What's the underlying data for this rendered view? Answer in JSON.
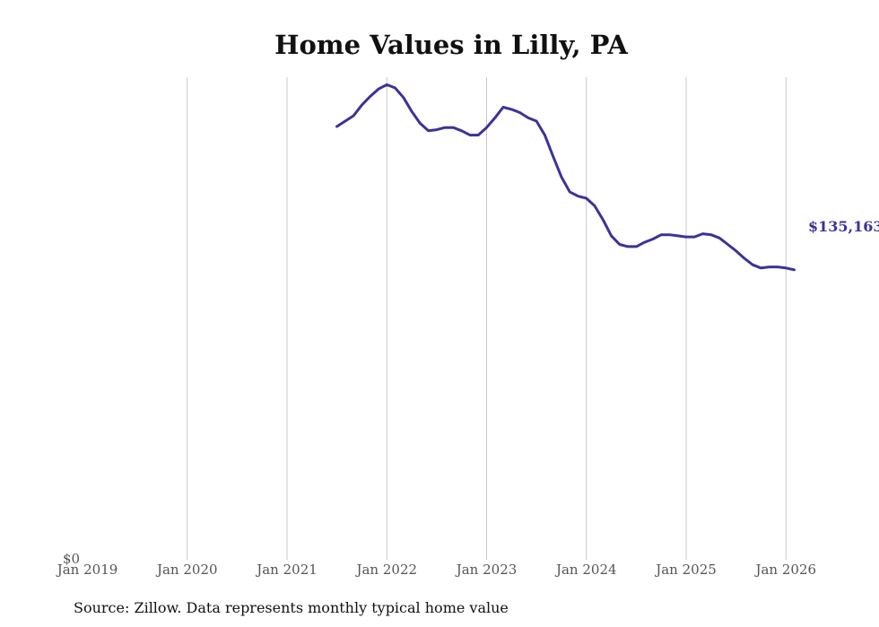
{
  "chart_data": {
    "type": "line",
    "title": "Home Values in Lilly, PA",
    "xlabel": "",
    "ylabel": "",
    "x_ticks": [
      "Jan 2019",
      "Jan 2020",
      "Jan 2021",
      "Jan 2022",
      "Jan 2023",
      "Jan 2024",
      "Jan 2025",
      "Jan 2026"
    ],
    "y_tick_label": "$0",
    "ylim": [
      0,
      225000
    ],
    "grid": true,
    "series": [
      {
        "name": "Typical home value",
        "color": "#3b3399",
        "start": "2021-07",
        "values": [
          202000,
          204500,
          207000,
          212000,
          216000,
          219500,
          221500,
          220000,
          215500,
          209000,
          203500,
          200000,
          200500,
          201500,
          201500,
          200000,
          198000,
          198000,
          201500,
          206000,
          211000,
          210000,
          208500,
          206000,
          204500,
          198000,
          188000,
          178500,
          171500,
          169500,
          168500,
          165000,
          158500,
          151000,
          147000,
          146000,
          146000,
          148000,
          149500,
          151500,
          151500,
          151000,
          150500,
          150500,
          152000,
          151500,
          150000,
          147000,
          144000,
          140500,
          137500,
          136000,
          136500,
          136500,
          136000,
          135163
        ],
        "end_label": "$135,163"
      }
    ]
  },
  "footer": {
    "source": "Source: Zillow. Data represents monthly typical home value"
  }
}
